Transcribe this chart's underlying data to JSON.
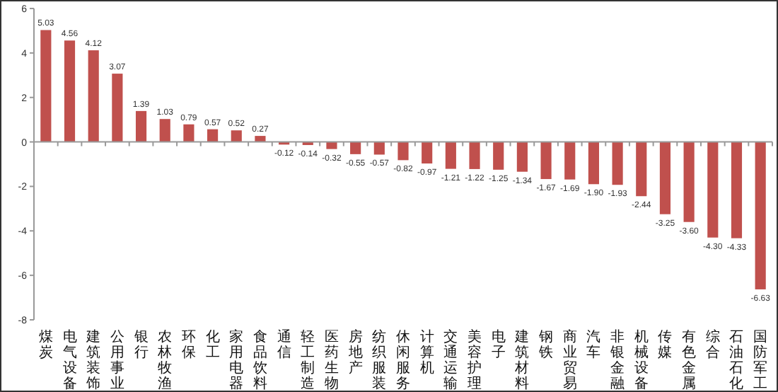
{
  "chart_data": {
    "type": "bar",
    "categories": [
      "煤炭",
      "电气设备",
      "建筑装饰",
      "公用事业",
      "银行",
      "农林牧渔",
      "环保",
      "化工",
      "家用电器",
      "食品饮料",
      "通信",
      "轻工制造",
      "医药生物",
      "房地产",
      "纺织服装",
      "休闲服务",
      "计算机",
      "交通运输",
      "美容护理",
      "电子",
      "建筑材料",
      "钢铁",
      "商业贸易",
      "汽车",
      "非银金融",
      "机械设备",
      "传媒",
      "有色金属",
      "综合",
      "石油石化",
      "国防军工"
    ],
    "values": [
      5.03,
      4.56,
      4.12,
      3.07,
      1.39,
      1.03,
      0.79,
      0.57,
      0.52,
      0.27,
      -0.12,
      -0.14,
      -0.32,
      -0.55,
      -0.57,
      -0.82,
      -0.97,
      -1.21,
      -1.22,
      -1.25,
      -1.34,
      -1.67,
      -1.69,
      -1.9,
      -1.93,
      -2.44,
      -3.25,
      -3.6,
      -4.3,
      -4.33,
      -6.63
    ],
    "value_labels": [
      "5.03",
      "4.56",
      "4.12",
      "3.07",
      "1.39",
      "1.03",
      "0.79",
      "0.57",
      "0.52",
      "0.27",
      "-0.12",
      "-0.14",
      "-0.32",
      "-0.55",
      "-0.57",
      "-0.82",
      "-0.97",
      "-1.21",
      "-1.22",
      "-1.25",
      "-1.34",
      "-1.67",
      "-1.69",
      "-1.90",
      "-1.93",
      "-2.44",
      "-3.25",
      "-3.60",
      "-4.30",
      "-4.33",
      "-6.63"
    ],
    "color": "#c0504d",
    "ylim": [
      -8,
      6
    ],
    "yticks": [
      -8,
      -6,
      -4,
      -2,
      0,
      2,
      4,
      6
    ]
  }
}
